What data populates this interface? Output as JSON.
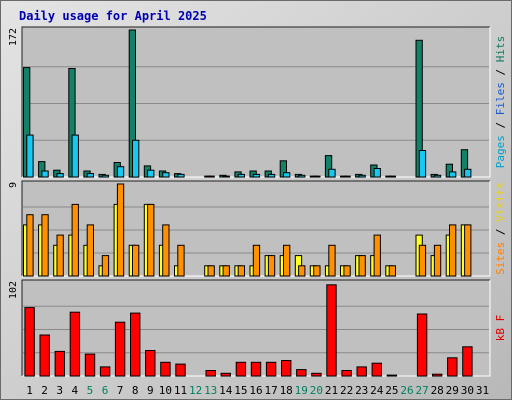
{
  "chart_data": {
    "type": "bar",
    "title": "Daily usage for April 2025",
    "categories": [
      "1",
      "2",
      "3",
      "4",
      "5",
      "6",
      "7",
      "8",
      "9",
      "10",
      "11",
      "12",
      "13",
      "14",
      "15",
      "16",
      "17",
      "18",
      "19",
      "20",
      "21",
      "22",
      "23",
      "24",
      "25",
      "26",
      "27",
      "28",
      "29",
      "30",
      "31"
    ],
    "weekend_days": [
      "5",
      "6",
      "12",
      "13",
      "19",
      "20",
      "26",
      "27"
    ],
    "grid": true,
    "legend_placement": "right",
    "panels": [
      {
        "id": "hits-files-pages",
        "max_label": "172",
        "ylim": [
          0,
          172
        ],
        "right_labels": [
          {
            "text": "Pages",
            "color": "#00a0c8"
          },
          {
            "text": " / ",
            "color": "#000000"
          },
          {
            "text": "Files",
            "color": "#1b5bd0"
          },
          {
            "text": " / ",
            "color": "#000000"
          },
          {
            "text": "Hits",
            "color": "#107a60"
          }
        ],
        "series": [
          {
            "name": "Hits",
            "color": "#138068",
            "values": [
              128,
              18,
              8,
              127,
              7,
              3,
              17,
              172,
              13,
              7,
              4,
              0,
              1,
              2,
              6,
              7,
              7,
              19,
              3,
              1,
              25,
              1,
              3,
              14,
              1,
              0,
              160,
              3,
              15,
              32,
              0
            ]
          },
          {
            "name": "Files",
            "color": "#18c8f0",
            "values": [
              49,
              7,
              4,
              49,
              4,
              2,
              12,
              43,
              8,
              5,
              3,
              0,
              1,
              1,
              3,
              3,
              3,
              5,
              2,
              1,
              9,
              1,
              2,
              10,
              1,
              0,
              31,
              2,
              6,
              9,
              0
            ]
          },
          {
            "name": "Pages",
            "color": "#00e0ff",
            "values": [
              0,
              0,
              0,
              0,
              0,
              0,
              0,
              0,
              0,
              0,
              0,
              0,
              0,
              0,
              0,
              0,
              0,
              0,
              0,
              0,
              0,
              0,
              0,
              0,
              0,
              0,
              0,
              0,
              0,
              0,
              0
            ]
          }
        ]
      },
      {
        "id": "visits-sites",
        "max_label": "9",
        "ylim": [
          0,
          9
        ],
        "right_labels": [
          {
            "text": "Sites",
            "color": "#ff8000"
          },
          {
            "text": " / ",
            "color": "#000000"
          },
          {
            "text": "Visits",
            "color": "#e8d020"
          }
        ],
        "series": [
          {
            "name": "Visits",
            "color": "#ffff20",
            "values": [
              5,
              5,
              3,
              4,
              3,
              1,
              7,
              3,
              7,
              3,
              1,
              0,
              1,
              1,
              1,
              1,
              2,
              2,
              2,
              1,
              1,
              1,
              2,
              2,
              1,
              0,
              4,
              2,
              4,
              5,
              0
            ]
          },
          {
            "name": "Sites",
            "color": "#ff9000",
            "values": [
              6,
              6,
              4,
              7,
              5,
              2,
              9,
              3,
              7,
              5,
              3,
              0,
              1,
              1,
              1,
              3,
              2,
              3,
              1,
              1,
              3,
              1,
              2,
              4,
              1,
              0,
              3,
              3,
              5,
              5,
              0
            ]
          }
        ]
      },
      {
        "id": "kbytes",
        "max_label": "102",
        "ylim": [
          0,
          102
        ],
        "right_labels": [
          {
            "text": "kB F",
            "color": "#e00000"
          }
        ],
        "series": [
          {
            "name": "kB F",
            "color": "#ff0000",
            "values": [
              75,
              45,
              27,
              70,
              24,
              10,
              59,
              69,
              28,
              15,
              13,
              0,
              6,
              3,
              15,
              15,
              15,
              17,
              7,
              3,
              100,
              6,
              10,
              14,
              1,
              0,
              68,
              2,
              20,
              32,
              0
            ]
          }
        ]
      }
    ]
  }
}
